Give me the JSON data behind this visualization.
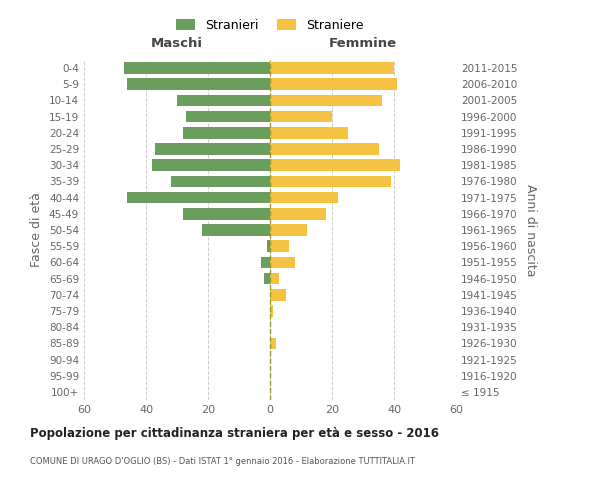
{
  "age_groups": [
    "100+",
    "95-99",
    "90-94",
    "85-89",
    "80-84",
    "75-79",
    "70-74",
    "65-69",
    "60-64",
    "55-59",
    "50-54",
    "45-49",
    "40-44",
    "35-39",
    "30-34",
    "25-29",
    "20-24",
    "15-19",
    "10-14",
    "5-9",
    "0-4"
  ],
  "birth_years": [
    "≤ 1915",
    "1916-1920",
    "1921-1925",
    "1926-1930",
    "1931-1935",
    "1936-1940",
    "1941-1945",
    "1946-1950",
    "1951-1955",
    "1956-1960",
    "1961-1965",
    "1966-1970",
    "1971-1975",
    "1976-1980",
    "1981-1985",
    "1986-1990",
    "1991-1995",
    "1996-2000",
    "2001-2005",
    "2006-2010",
    "2011-2015"
  ],
  "males": [
    0,
    0,
    0,
    0,
    0,
    0,
    0,
    2,
    3,
    1,
    22,
    28,
    46,
    32,
    38,
    37,
    28,
    27,
    30,
    46,
    47
  ],
  "females": [
    0,
    0,
    0,
    2,
    0,
    1,
    5,
    3,
    8,
    6,
    12,
    18,
    22,
    39,
    42,
    35,
    25,
    20,
    36,
    41,
    40
  ],
  "male_color": "#6a9e5f",
  "female_color": "#f5c242",
  "title": "Popolazione per cittadinanza straniera per età e sesso - 2016",
  "subtitle": "COMUNE DI URAGO D'OGLIO (BS) - Dati ISTAT 1° gennaio 2016 - Elaborazione TUTTITALIA.IT",
  "left_header": "Maschi",
  "right_header": "Femmine",
  "ylabel_left": "Fasce di età",
  "ylabel_right": "Anni di nascita",
  "legend_male": "Stranieri",
  "legend_female": "Straniere",
  "xlim": 60,
  "background_color": "#ffffff",
  "grid_color": "#cccccc"
}
